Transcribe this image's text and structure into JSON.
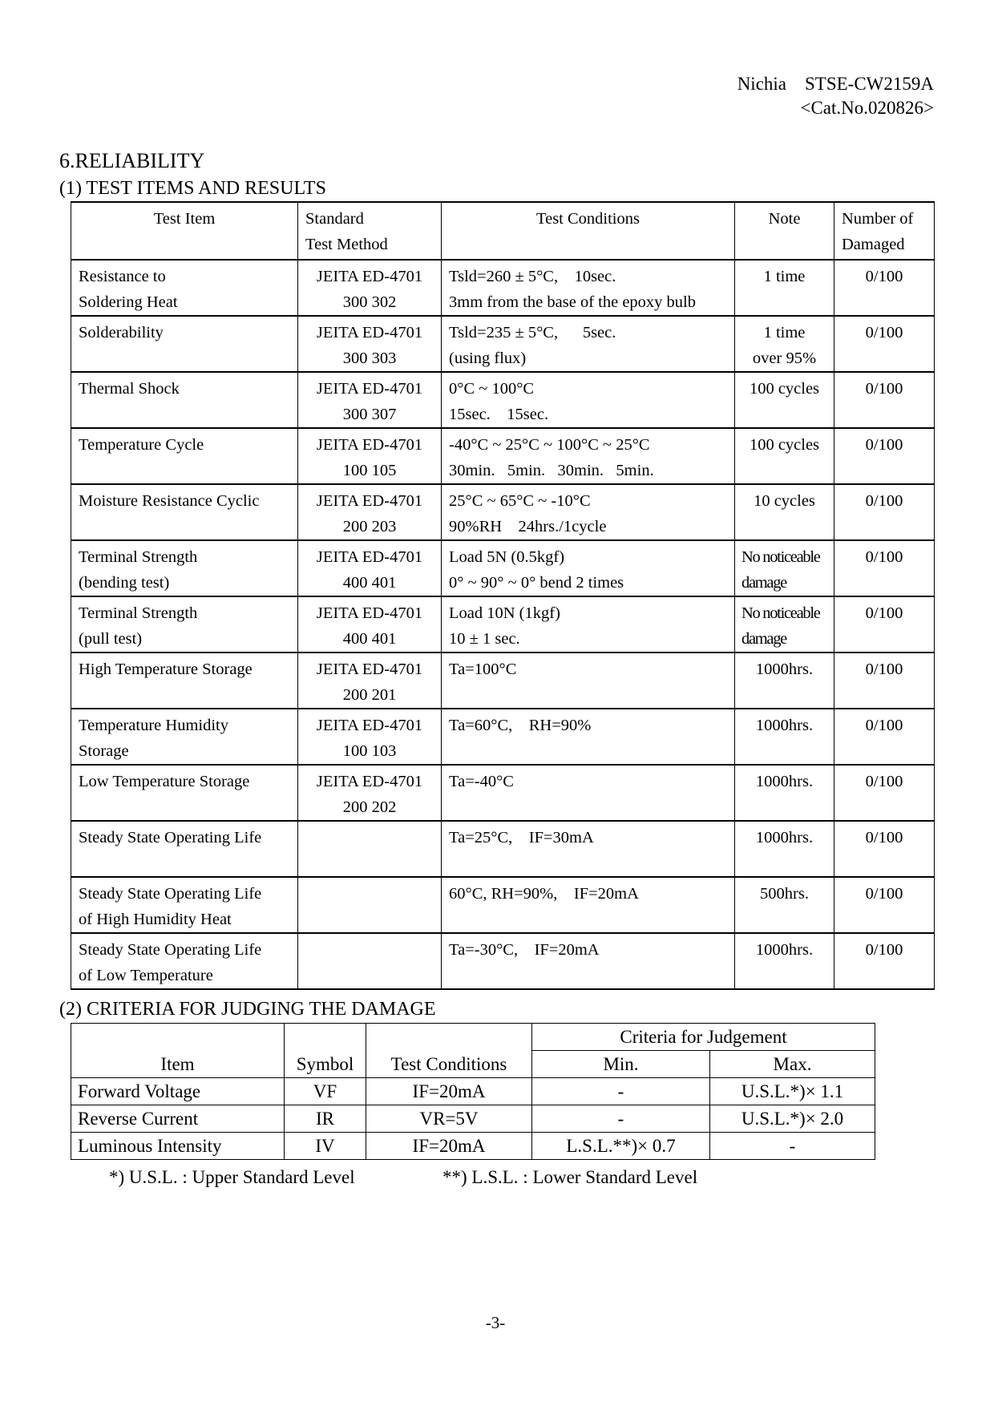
{
  "header": {
    "line1": "Nichia    STSE-CW2159A",
    "line2": "<Cat.No.020826>"
  },
  "section_title": "6.RELIABILITY",
  "test_results": {
    "title": "(1) TEST ITEMS AND RESULTS",
    "columns": [
      [
        "",
        "Test Item"
      ],
      [
        "Standard",
        "Test Method"
      ],
      [
        "",
        "Test Conditions"
      ],
      [
        "",
        "Note"
      ],
      [
        "Number of",
        "Damaged"
      ]
    ],
    "rows": [
      {
        "item": [
          "Resistance to",
          "Soldering Heat"
        ],
        "method": [
          "JEITA ED-4701",
          "300 302"
        ],
        "conditions": [
          "Tsld=260 ± 5°C,    10sec.",
          "3mm from the base of the epoxy bulb"
        ],
        "note": [
          "1 time"
        ],
        "damaged": "0/100"
      },
      {
        "item": [
          "Solderability"
        ],
        "method": [
          "JEITA ED-4701",
          "300 303"
        ],
        "conditions": [
          "Tsld=235 ± 5°C,      5sec.",
          "(using flux)"
        ],
        "note": [
          "1 time",
          "over 95%"
        ],
        "damaged": "0/100"
      },
      {
        "item": [
          "Thermal Shock"
        ],
        "method": [
          "JEITA ED-4701",
          "300 307"
        ],
        "conditions": [
          "0°C ~ 100°C",
          "15sec.    15sec."
        ],
        "note": [
          "100 cycles"
        ],
        "damaged": "0/100"
      },
      {
        "item": [
          "Temperature Cycle"
        ],
        "method": [
          "JEITA ED-4701",
          "100 105"
        ],
        "conditions": [
          "-40°C ~ 25°C ~ 100°C ~ 25°C",
          "30min.   5min.   30min.   5min."
        ],
        "note": [
          "100 cycles"
        ],
        "damaged": "0/100"
      },
      {
        "item": [
          "Moisture Resistance Cyclic"
        ],
        "method": [
          "JEITA ED-4701",
          "200 203"
        ],
        "conditions": [
          "25°C ~ 65°C ~ -10°C",
          "90%RH    24hrs./1cycle"
        ],
        "note": [
          "10 cycles"
        ],
        "damaged": "0/100"
      },
      {
        "item": [
          "Terminal Strength",
          "(bending test)"
        ],
        "method": [
          "JEITA ED-4701",
          "400 401"
        ],
        "conditions": [
          "Load 5N (0.5kgf)",
          "0° ~ 90° ~ 0° bend 2 times"
        ],
        "note": [
          "No noticeable",
          "damage"
        ],
        "damaged": "0/100"
      },
      {
        "item": [
          "Terminal Strength",
          "(pull test)"
        ],
        "method": [
          "JEITA ED-4701",
          "400 401"
        ],
        "conditions": [
          "Load 10N (1kgf)",
          "10 ± 1 sec."
        ],
        "note": [
          "No noticeable",
          "damage"
        ],
        "damaged": "0/100"
      },
      {
        "item": [
          "High Temperature Storage"
        ],
        "method": [
          "JEITA ED-4701",
          "200 201"
        ],
        "conditions": [
          "Ta=100°C"
        ],
        "note": [
          "1000hrs."
        ],
        "damaged": "0/100"
      },
      {
        "item": [
          "Temperature Humidity",
          "Storage"
        ],
        "method": [
          "JEITA ED-4701",
          "100 103"
        ],
        "conditions": [
          "Ta=60°C,    RH=90%"
        ],
        "note": [
          "1000hrs."
        ],
        "damaged": "0/100"
      },
      {
        "item": [
          "Low Temperature Storage"
        ],
        "method": [
          "JEITA ED-4701",
          "200 202"
        ],
        "conditions": [
          "Ta=-40°C"
        ],
        "note": [
          "1000hrs."
        ],
        "damaged": "0/100"
      },
      {
        "item": [
          "Steady State Operating Life"
        ],
        "method": [],
        "conditions": [
          "Ta=25°C,    IF=30mA"
        ],
        "note": [
          "1000hrs."
        ],
        "damaged": "0/100"
      },
      {
        "item": [
          "Steady State Operating Life",
          "of High Humidity Heat"
        ],
        "method": [],
        "conditions": [
          "60°C, RH=90%,    IF=20mA"
        ],
        "note": [
          "500hrs."
        ],
        "damaged": "0/100"
      },
      {
        "item": [
          "Steady State Operating Life",
          "of Low Temperature"
        ],
        "method": [],
        "conditions": [
          "Ta=-30°C,    IF=20mA"
        ],
        "note": [
          "1000hrs."
        ],
        "damaged": "0/100"
      }
    ]
  },
  "criteria": {
    "title": "(2) CRITERIA FOR JUDGING THE DAMAGE",
    "headers": {
      "item": "Item",
      "symbol": "Symbol",
      "conditions": "Test Conditions",
      "group": "Criteria for Judgement",
      "min": "Min.",
      "max": "Max."
    },
    "rows": [
      {
        "item": "Forward Voltage",
        "symbol": "VF",
        "conditions": "IF=20mA",
        "min": "-",
        "max": "U.S.L.*)× 1.1"
      },
      {
        "item": "Reverse Current",
        "symbol": "IR",
        "conditions": "VR=5V",
        "min": "-",
        "max": "U.S.L.*)× 2.0"
      },
      {
        "item": "Luminous Intensity",
        "symbol": "IV",
        "conditions": "IF=20mA",
        "min": "L.S.L.**)× 0.7",
        "max": "-"
      }
    ],
    "footnotes": [
      "*) U.S.L. : Upper Standard Level",
      "**) L.S.L. : Lower Standard Level"
    ]
  },
  "page_number": "-3-"
}
